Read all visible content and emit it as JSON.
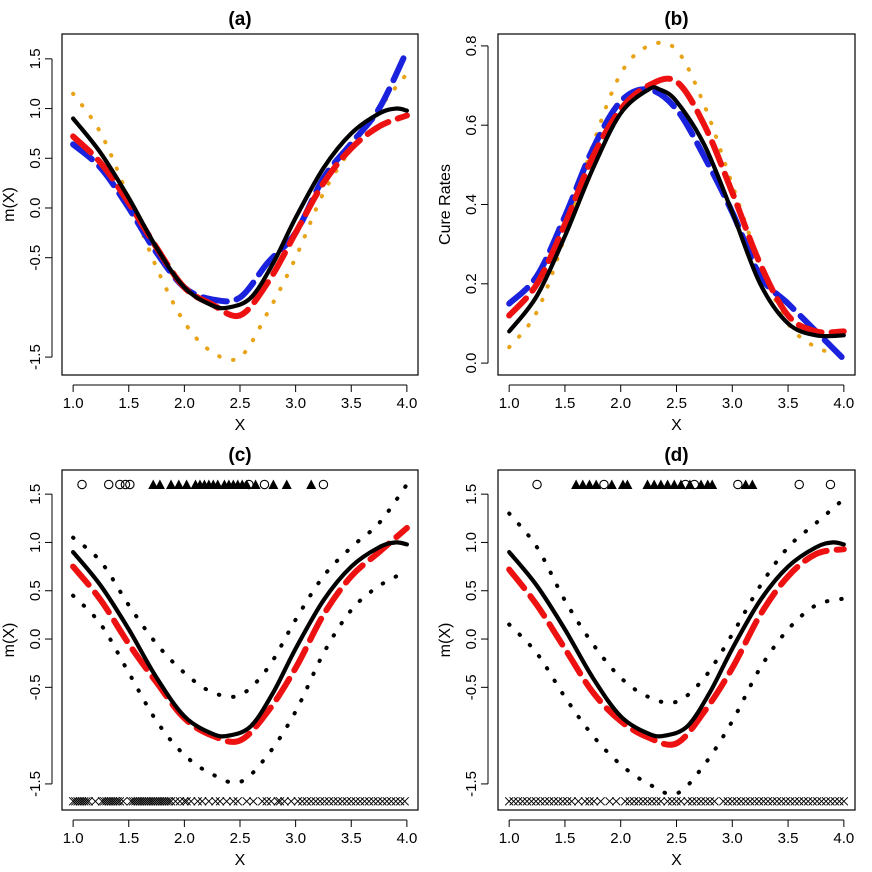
{
  "colors": {
    "truth": "#000000",
    "red": "#ee1111",
    "blue": "#1a22dd",
    "orange": "#e8a317"
  },
  "chart_data": [
    {
      "id": "a",
      "type": "line",
      "title": "(a)",
      "xlabel": "X",
      "ylabel": "m(X)",
      "xlim": [
        0.9,
        4.1
      ],
      "ylim": [
        -1.68,
        1.75
      ],
      "xticks": [
        "1.0",
        "1.5",
        "2.0",
        "2.5",
        "3.0",
        "3.5",
        "4.0"
      ],
      "yticks": [
        "-1.5",
        "-0.5",
        "0.0",
        "0.5",
        "1.0",
        "1.5"
      ],
      "series": [
        {
          "name": "truth",
          "style": "solid",
          "color": "#000000",
          "x": [
            1.0,
            1.25,
            1.5,
            1.75,
            2.0,
            2.25,
            2.4,
            2.6,
            2.8,
            3.0,
            3.25,
            3.5,
            3.75,
            3.9,
            4.0
          ],
          "y": [
            0.9,
            0.55,
            0.1,
            -0.4,
            -0.8,
            -0.98,
            -1.0,
            -0.9,
            -0.55,
            -0.1,
            0.4,
            0.75,
            0.95,
            1.0,
            0.98
          ]
        },
        {
          "name": "red",
          "style": "dashed",
          "color": "#ee1111",
          "x": [
            1.0,
            1.25,
            1.5,
            1.75,
            2.0,
            2.25,
            2.5,
            2.75,
            3.0,
            3.25,
            3.5,
            3.75,
            4.0
          ],
          "y": [
            0.72,
            0.45,
            0.05,
            -0.4,
            -0.8,
            -0.97,
            -1.08,
            -0.75,
            -0.25,
            0.25,
            0.6,
            0.82,
            0.93
          ]
        },
        {
          "name": "blue",
          "style": "dashed",
          "color": "#1a22dd",
          "x": [
            1.0,
            1.25,
            1.5,
            1.75,
            2.0,
            2.25,
            2.5,
            2.75,
            3.0,
            3.25,
            3.5,
            3.75,
            4.0
          ],
          "y": [
            0.64,
            0.4,
            0.0,
            -0.45,
            -0.8,
            -0.92,
            -0.9,
            -0.55,
            -0.25,
            0.3,
            0.65,
            1.0,
            1.58
          ]
        },
        {
          "name": "orange",
          "style": "dotted",
          "color": "#e8a317",
          "x": [
            1.0,
            1.25,
            1.5,
            1.75,
            2.0,
            2.25,
            2.5,
            2.75,
            3.0,
            3.25,
            3.5,
            3.75,
            4.0
          ],
          "y": [
            1.15,
            0.75,
            0.1,
            -0.6,
            -1.15,
            -1.45,
            -1.5,
            -1.05,
            -0.5,
            0.15,
            0.6,
            1.0,
            1.35
          ]
        }
      ]
    },
    {
      "id": "b",
      "type": "line",
      "title": "(b)",
      "xlabel": "X",
      "ylabel": "Cure Rates",
      "xlim": [
        0.9,
        4.1
      ],
      "ylim": [
        -0.03,
        0.83
      ],
      "xticks": [
        "1.0",
        "1.5",
        "2.0",
        "2.5",
        "3.0",
        "3.5",
        "4.0"
      ],
      "yticks": [
        "0.0",
        "0.2",
        "0.4",
        "0.6",
        "0.8"
      ],
      "series": [
        {
          "name": "truth",
          "style": "solid",
          "color": "#000000",
          "x": [
            1.0,
            1.25,
            1.5,
            1.75,
            2.0,
            2.25,
            2.35,
            2.5,
            2.75,
            3.0,
            3.25,
            3.5,
            3.75,
            4.0
          ],
          "y": [
            0.08,
            0.17,
            0.32,
            0.49,
            0.63,
            0.69,
            0.69,
            0.66,
            0.55,
            0.38,
            0.2,
            0.1,
            0.07,
            0.07
          ]
        },
        {
          "name": "red",
          "style": "dashed",
          "color": "#ee1111",
          "x": [
            1.0,
            1.25,
            1.5,
            1.75,
            2.0,
            2.25,
            2.5,
            2.75,
            3.0,
            3.25,
            3.5,
            3.75,
            4.0
          ],
          "y": [
            0.12,
            0.2,
            0.35,
            0.52,
            0.64,
            0.7,
            0.71,
            0.6,
            0.43,
            0.25,
            0.12,
            0.08,
            0.08
          ]
        },
        {
          "name": "blue",
          "style": "dashed",
          "color": "#1a22dd",
          "x": [
            1.0,
            1.25,
            1.5,
            1.75,
            2.0,
            2.25,
            2.5,
            2.75,
            3.0,
            3.25,
            3.5,
            3.75,
            4.0
          ],
          "y": [
            0.15,
            0.22,
            0.37,
            0.54,
            0.66,
            0.69,
            0.64,
            0.52,
            0.38,
            0.22,
            0.15,
            0.08,
            0.01
          ]
        },
        {
          "name": "orange",
          "style": "dotted",
          "color": "#e8a317",
          "x": [
            1.0,
            1.25,
            1.5,
            1.75,
            2.0,
            2.25,
            2.5,
            2.75,
            3.0,
            3.25,
            3.5,
            3.75,
            4.0
          ],
          "y": [
            0.04,
            0.13,
            0.32,
            0.55,
            0.73,
            0.8,
            0.79,
            0.65,
            0.45,
            0.25,
            0.1,
            0.04,
            0.02
          ]
        }
      ]
    },
    {
      "id": "c",
      "type": "line",
      "title": "(c)",
      "xlabel": "X",
      "ylabel": "m(X)",
      "xlim": [
        0.9,
        4.1
      ],
      "ylim": [
        -1.77,
        1.75
      ],
      "xticks": [
        "1.0",
        "1.5",
        "2.0",
        "2.5",
        "3.0",
        "3.5",
        "4.0"
      ],
      "yticks": [
        "-1.5",
        "-0.5",
        "0.0",
        "0.5",
        "1.0",
        "1.5"
      ],
      "series": [
        {
          "name": "truth",
          "style": "solid",
          "color": "#000000",
          "x": [
            1.0,
            1.25,
            1.5,
            1.75,
            2.0,
            2.25,
            2.4,
            2.6,
            2.8,
            3.0,
            3.25,
            3.5,
            3.75,
            3.9,
            4.0
          ],
          "y": [
            0.9,
            0.55,
            0.1,
            -0.4,
            -0.8,
            -0.98,
            -1.0,
            -0.9,
            -0.55,
            -0.1,
            0.4,
            0.75,
            0.95,
            1.0,
            0.98
          ]
        },
        {
          "name": "estimate",
          "style": "dashed",
          "color": "#ee1111",
          "x": [
            1.0,
            1.25,
            1.5,
            1.75,
            2.0,
            2.25,
            2.5,
            2.75,
            3.0,
            3.25,
            3.5,
            3.75,
            4.0
          ],
          "y": [
            0.75,
            0.4,
            -0.05,
            -0.45,
            -0.82,
            -1.0,
            -1.05,
            -0.75,
            -0.3,
            0.25,
            0.65,
            0.9,
            1.15
          ]
        },
        {
          "name": "upper band",
          "style": "dotted",
          "color": "#000000",
          "x": [
            1.0,
            1.25,
            1.5,
            1.75,
            2.0,
            2.25,
            2.5,
            2.75,
            3.0,
            3.25,
            3.5,
            3.75,
            4.0
          ],
          "y": [
            1.05,
            0.8,
            0.35,
            -0.05,
            -0.35,
            -0.55,
            -0.58,
            -0.3,
            0.2,
            0.65,
            0.95,
            1.2,
            1.6
          ]
        },
        {
          "name": "lower band",
          "style": "dotted",
          "color": "#000000",
          "x": [
            1.0,
            1.25,
            1.5,
            1.75,
            2.0,
            2.25,
            2.5,
            2.75,
            3.0,
            3.25,
            3.5,
            3.75,
            4.0
          ],
          "y": [
            0.45,
            0.15,
            -0.35,
            -0.85,
            -1.2,
            -1.4,
            -1.48,
            -1.2,
            -0.75,
            -0.15,
            0.3,
            0.55,
            0.7
          ]
        }
      ],
      "top_points": [
        {
          "marker": "circle",
          "x": [
            1.08,
            1.32,
            1.42,
            1.47,
            1.51,
            2.58,
            2.72,
            3.25
          ]
        },
        {
          "marker": "triangle",
          "x": [
            1.72,
            1.78,
            1.88,
            1.95,
            2.02,
            2.1,
            2.14,
            2.18,
            2.22,
            2.26,
            2.3,
            2.36,
            2.4,
            2.44,
            2.48,
            2.52,
            2.56,
            2.64,
            2.8,
            2.92,
            3.14
          ]
        }
      ],
      "bottom_points": {
        "marker": "cross",
        "x": [
          1.0,
          1.02,
          1.04,
          1.06,
          1.08,
          1.1,
          1.12,
          1.14,
          1.2,
          1.26,
          1.28,
          1.3,
          1.32,
          1.34,
          1.36,
          1.38,
          1.4,
          1.42,
          1.45,
          1.52,
          1.54,
          1.56,
          1.58,
          1.6,
          1.62,
          1.64,
          1.66,
          1.68,
          1.7,
          1.72,
          1.74,
          1.76,
          1.78,
          1.8,
          1.82,
          1.84,
          1.86,
          1.88,
          1.92,
          1.96,
          2.0,
          2.02,
          2.06,
          2.12,
          2.16,
          2.22,
          2.28,
          2.32,
          2.38,
          2.44,
          2.48,
          2.56,
          2.62,
          2.7,
          2.74,
          2.78,
          2.84,
          2.86,
          2.9,
          2.96,
          3.02,
          3.06,
          3.1,
          3.14,
          3.18,
          3.22,
          3.26,
          3.3,
          3.34,
          3.38,
          3.42,
          3.46,
          3.5,
          3.54,
          3.58,
          3.62,
          3.66,
          3.7,
          3.74,
          3.78,
          3.82,
          3.86,
          3.9,
          3.94,
          3.98
        ]
      }
    },
    {
      "id": "d",
      "type": "line",
      "title": "(d)",
      "xlabel": "X",
      "ylabel": "m(X)",
      "xlim": [
        0.9,
        4.1
      ],
      "ylim": [
        -1.77,
        1.75
      ],
      "xticks": [
        "1.0",
        "1.5",
        "2.0",
        "2.5",
        "3.0",
        "3.5",
        "4.0"
      ],
      "yticks": [
        "-1.5",
        "-0.5",
        "0.0",
        "0.5",
        "1.0",
        "1.5"
      ],
      "series": [
        {
          "name": "truth",
          "style": "solid",
          "color": "#000000",
          "x": [
            1.0,
            1.25,
            1.5,
            1.75,
            2.0,
            2.25,
            2.4,
            2.6,
            2.8,
            3.0,
            3.25,
            3.5,
            3.75,
            3.9,
            4.0
          ],
          "y": [
            0.9,
            0.55,
            0.1,
            -0.4,
            -0.8,
            -0.98,
            -1.0,
            -0.9,
            -0.55,
            -0.1,
            0.4,
            0.75,
            0.95,
            1.0,
            0.98
          ]
        },
        {
          "name": "estimate",
          "style": "dashed",
          "color": "#ee1111",
          "x": [
            1.0,
            1.25,
            1.5,
            1.75,
            2.0,
            2.25,
            2.5,
            2.75,
            3.0,
            3.25,
            3.5,
            3.75,
            4.0
          ],
          "y": [
            0.72,
            0.35,
            -0.1,
            -0.55,
            -0.85,
            -1.02,
            -1.08,
            -0.75,
            -0.3,
            0.25,
            0.65,
            0.88,
            0.93
          ]
        },
        {
          "name": "upper band",
          "style": "dotted",
          "color": "#000000",
          "x": [
            1.0,
            1.25,
            1.5,
            1.75,
            2.0,
            2.25,
            2.5,
            2.75,
            3.0,
            3.25,
            3.5,
            3.75,
            4.0
          ],
          "y": [
            1.3,
            0.95,
            0.4,
            -0.05,
            -0.4,
            -0.6,
            -0.65,
            -0.4,
            0.05,
            0.55,
            0.95,
            1.2,
            1.45
          ]
        },
        {
          "name": "lower band",
          "style": "dotted",
          "color": "#000000",
          "x": [
            1.0,
            1.25,
            1.5,
            1.75,
            2.0,
            2.25,
            2.5,
            2.75,
            3.0,
            3.25,
            3.5,
            3.75,
            4.0
          ],
          "y": [
            0.15,
            -0.15,
            -0.6,
            -1.0,
            -1.3,
            -1.5,
            -1.6,
            -1.3,
            -0.85,
            -0.3,
            0.1,
            0.35,
            0.42
          ]
        }
      ],
      "top_points": [
        {
          "marker": "circle",
          "x": [
            1.25,
            1.85,
            2.58,
            2.66,
            3.05,
            3.6,
            3.88
          ]
        },
        {
          "marker": "triangle",
          "x": [
            1.6,
            1.66,
            1.72,
            1.78,
            1.92,
            2.02,
            2.06,
            2.24,
            2.3,
            2.36,
            2.42,
            2.48,
            2.54,
            2.62,
            2.72,
            2.78,
            2.82,
            3.12,
            3.18
          ]
        }
      ],
      "bottom_points": {
        "marker": "cross",
        "x": [
          1.0,
          1.04,
          1.08,
          1.12,
          1.16,
          1.2,
          1.24,
          1.28,
          1.32,
          1.36,
          1.4,
          1.44,
          1.48,
          1.52,
          1.56,
          1.62,
          1.68,
          1.72,
          1.76,
          1.82,
          1.9,
          1.96,
          2.04,
          2.08,
          2.12,
          2.16,
          2.2,
          2.24,
          2.28,
          2.32,
          2.36,
          2.42,
          2.46,
          2.5,
          2.54,
          2.6,
          2.64,
          2.68,
          2.72,
          2.76,
          2.8,
          2.84,
          2.92,
          2.96,
          3.0,
          3.04,
          3.08,
          3.12,
          3.16,
          3.2,
          3.24,
          3.28,
          3.32,
          3.36,
          3.4,
          3.44,
          3.48,
          3.52,
          3.56,
          3.6,
          3.64,
          3.68,
          3.72,
          3.76,
          3.8,
          3.84,
          3.88,
          3.92,
          3.96,
          4.0
        ]
      }
    }
  ]
}
